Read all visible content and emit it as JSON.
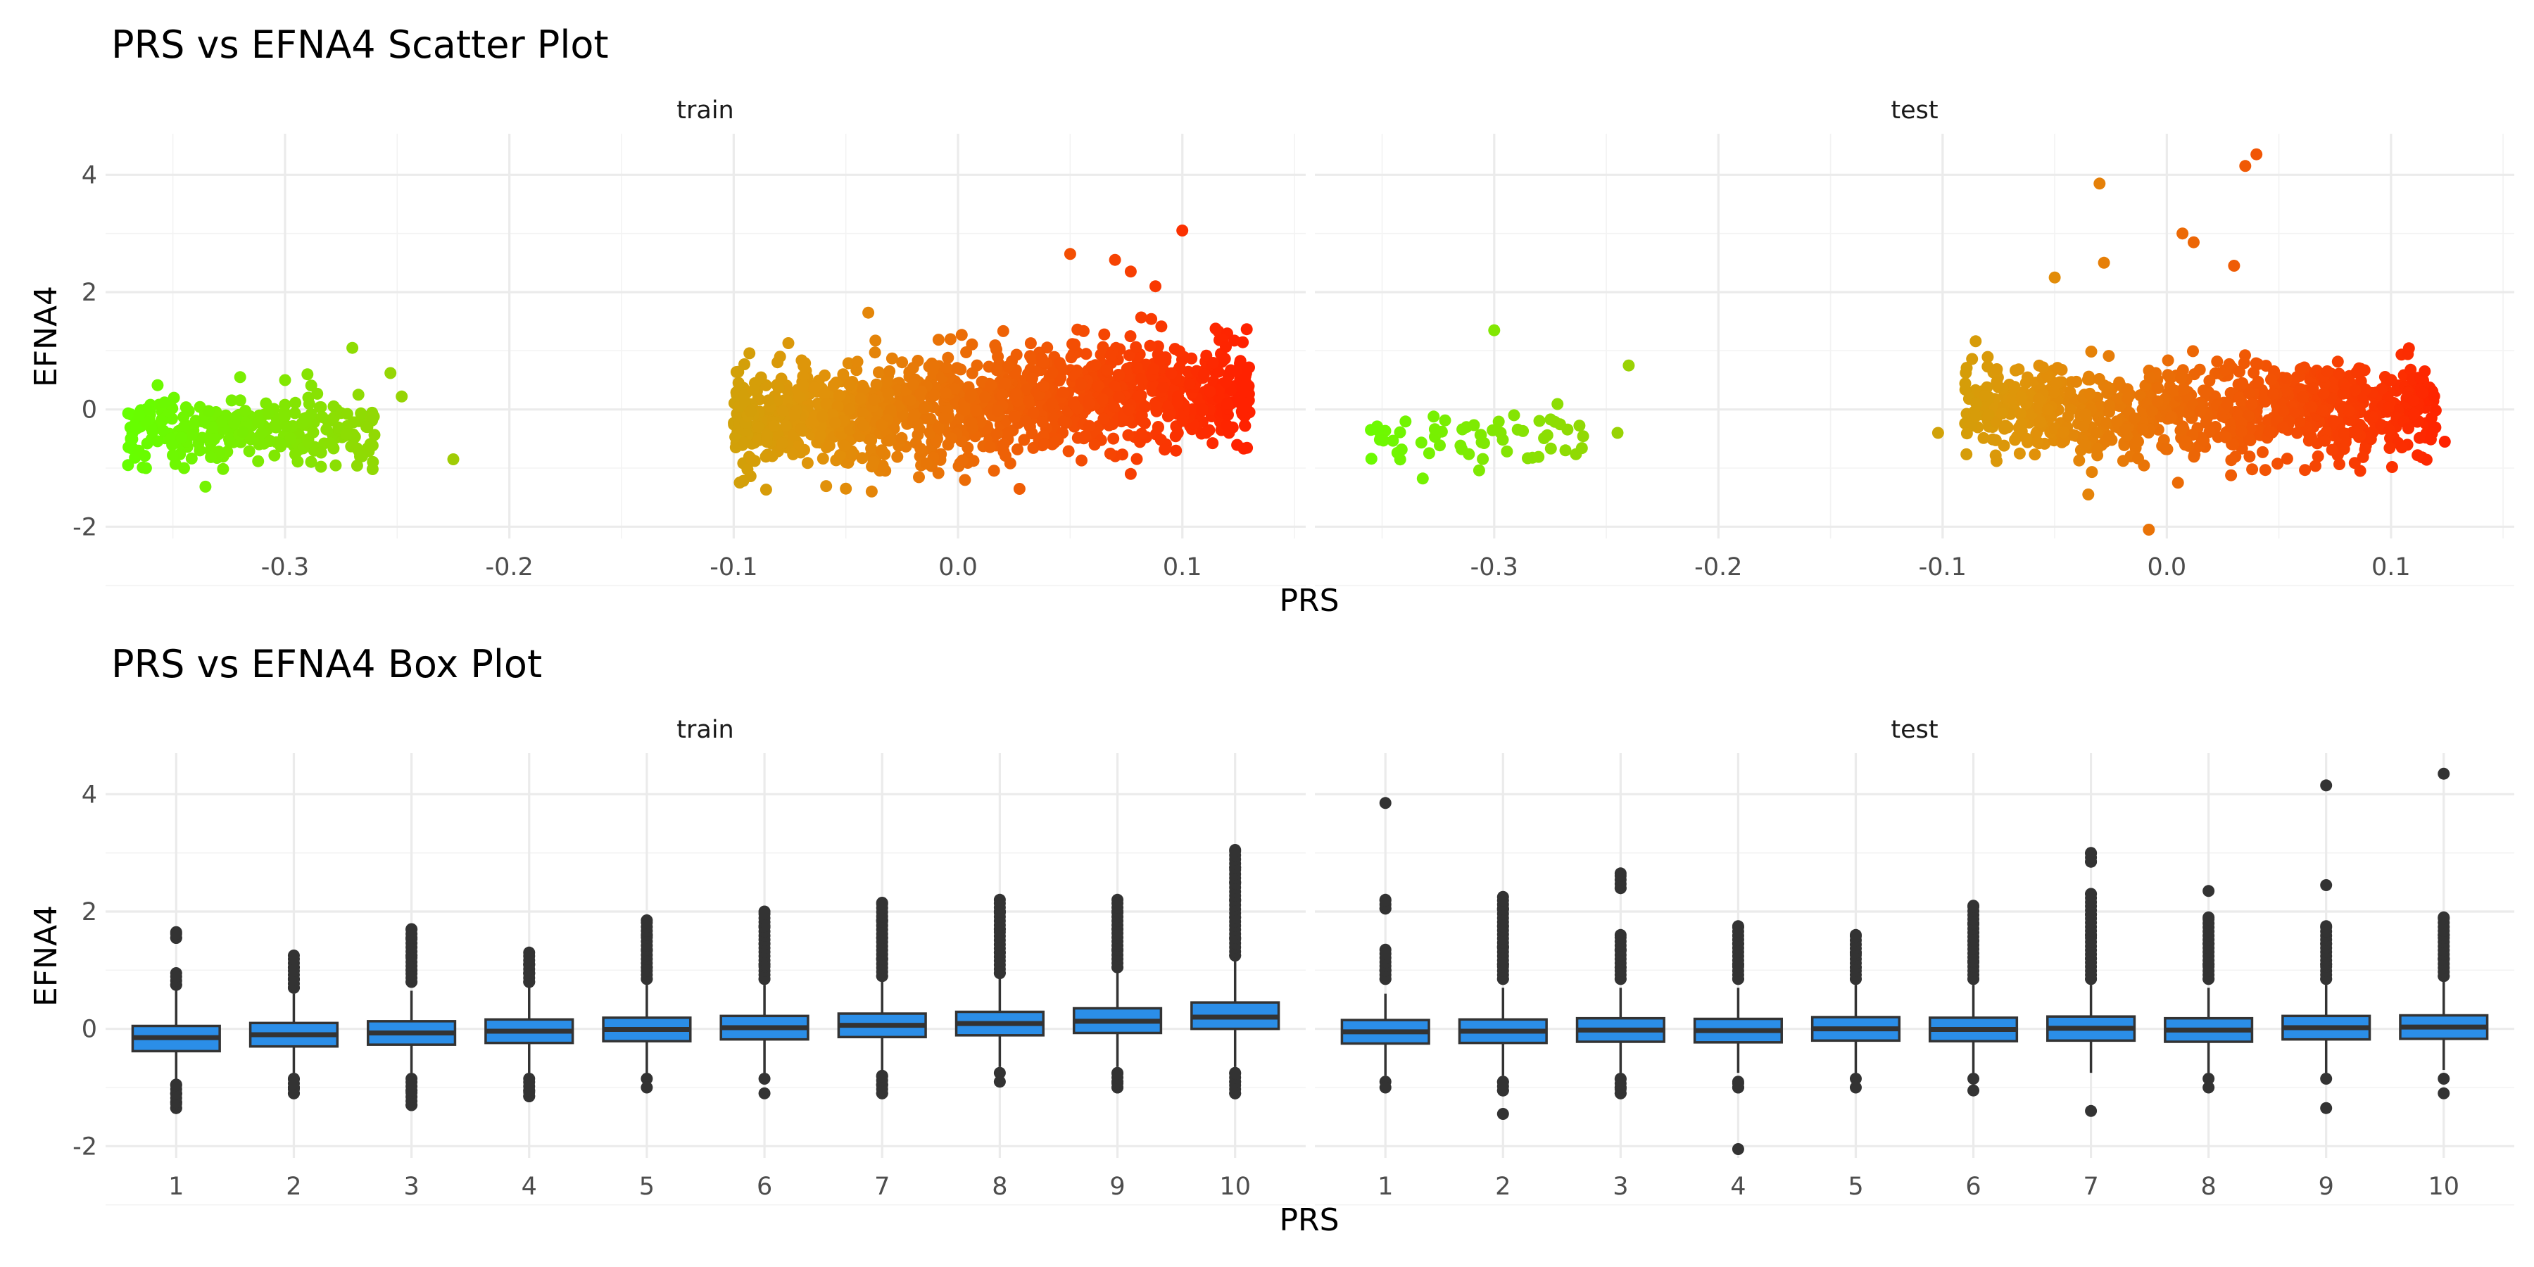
{
  "chart_data": [
    {
      "type": "scatter",
      "title": "PRS vs EFNA4 Scatter Plot",
      "xlabel": "PRS",
      "ylabel": "EFNA4",
      "xlim": [
        -0.38,
        0.155
      ],
      "ylim": [
        -2.2,
        4.7
      ],
      "xticks": [
        -0.3,
        -0.2,
        -0.1,
        0.0,
        0.1
      ],
      "xtick_labels": [
        "-0.3",
        "-0.2",
        "-0.1",
        "0.0",
        "0.1"
      ],
      "yticks": [
        -2,
        0,
        2,
        4
      ],
      "ytick_labels": [
        "-2",
        "0",
        "2",
        "4"
      ],
      "grid": true,
      "legend": "none",
      "color_scale": {
        "low": "#66ff00",
        "mid": "#e0940a",
        "high": "#ff2200"
      },
      "panels": [
        {
          "label": "train",
          "clusters": [
            {
              "x_range": [
                -0.37,
                -0.26
              ],
              "y_center": -0.35,
              "y_spread": 0.3
            },
            {
              "x_range": [
                -0.1,
                0.13
              ],
              "y_center": 0.05,
              "y_spread": 0.45
            }
          ],
          "points": [
            {
              "x": -0.37,
              "y": -0.95
            },
            {
              "x": -0.362,
              "y": -1.0
            },
            {
              "x": -0.365,
              "y": -0.1
            },
            {
              "x": -0.345,
              "y": -1.0
            },
            {
              "x": -0.32,
              "y": 0.55
            },
            {
              "x": -0.3,
              "y": 0.5
            },
            {
              "x": -0.29,
              "y": 0.6
            },
            {
              "x": -0.27,
              "y": 1.05
            },
            {
              "x": -0.253,
              "y": 0.62
            },
            {
              "x": -0.248,
              "y": 0.22
            },
            {
              "x": -0.225,
              "y": -0.85
            },
            {
              "x": -0.092,
              "y": -0.85
            },
            {
              "x": -0.04,
              "y": 1.65
            },
            {
              "x": 0.05,
              "y": 2.65
            },
            {
              "x": 0.07,
              "y": 2.55
            },
            {
              "x": 0.077,
              "y": 2.35
            },
            {
              "x": 0.088,
              "y": 2.1
            },
            {
              "x": 0.1,
              "y": 3.05
            },
            {
              "x": 0.077,
              "y": -1.1
            },
            {
              "x": -0.05,
              "y": -1.35
            },
            {
              "x": 0.126,
              "y": 0.78
            },
            {
              "x": 0.124,
              "y": 0.65
            },
            {
              "x": 0.098,
              "y": -0.4
            },
            {
              "x": 0.12,
              "y": 0.1
            }
          ]
        },
        {
          "label": "test",
          "clusters": [
            {
              "x_range": [
                -0.36,
                -0.26
              ],
              "y_center": -0.4,
              "y_spread": 0.28
            },
            {
              "x_range": [
                -0.09,
                0.12
              ],
              "y_center": 0.0,
              "y_spread": 0.38
            }
          ],
          "points": [
            {
              "x": -0.3,
              "y": 1.35
            },
            {
              "x": -0.24,
              "y": 0.75
            },
            {
              "x": -0.245,
              "y": -0.4
            },
            {
              "x": -0.355,
              "y": -0.35
            },
            {
              "x": -0.102,
              "y": -0.4
            },
            {
              "x": 0.035,
              "y": 4.15
            },
            {
              "x": 0.04,
              "y": 4.35
            },
            {
              "x": -0.03,
              "y": 3.85
            },
            {
              "x": 0.007,
              "y": 3.0
            },
            {
              "x": 0.012,
              "y": 2.85
            },
            {
              "x": -0.008,
              "y": -2.05
            },
            {
              "x": -0.035,
              "y": -1.45
            },
            {
              "x": 0.124,
              "y": -0.55
            },
            {
              "x": 0.11,
              "y": 0.15
            },
            {
              "x": -0.028,
              "y": 2.5
            },
            {
              "x": -0.05,
              "y": 2.25
            },
            {
              "x": 0.03,
              "y": 2.45
            },
            {
              "x": 0.005,
              "y": -1.25
            },
            {
              "x": 0.1,
              "y": 0.5
            },
            {
              "x": -0.085,
              "y": 0.1
            }
          ]
        }
      ]
    },
    {
      "type": "box",
      "title": "PRS vs EFNA4 Box Plot",
      "xlabel": "PRS",
      "ylabel": "EFNA4",
      "categories": [
        "1",
        "2",
        "3",
        "4",
        "5",
        "6",
        "7",
        "8",
        "9",
        "10"
      ],
      "ylim": [
        -2.2,
        4.7
      ],
      "yticks": [
        -2,
        0,
        2,
        4
      ],
      "ytick_labels": [
        "-2",
        "0",
        "2",
        "4"
      ],
      "fill": "#2b8ee8",
      "grid": true,
      "panels": [
        {
          "label": "train",
          "boxes": [
            {
              "q1": -0.38,
              "median": -0.15,
              "q3": 0.05,
              "wl": -0.85,
              "wh": 0.65,
              "out_lo": [
                -0.95,
                -1.1,
                -1.25,
                -1.35
              ],
              "out_hi": [
                0.75,
                0.95,
                1.55,
                1.65
              ]
            },
            {
              "q1": -0.3,
              "median": -0.1,
              "q3": 0.1,
              "wl": -0.75,
              "wh": 0.6,
              "out_lo": [
                -0.85,
                -1.0,
                -1.1
              ],
              "out_hi": [
                0.7,
                0.85,
                1.05,
                1.25
              ]
            },
            {
              "q1": -0.27,
              "median": -0.07,
              "q3": 0.13,
              "wl": -0.75,
              "wh": 0.65,
              "out_lo": [
                -0.85,
                -1.05,
                -1.3
              ],
              "out_hi": [
                0.8,
                1.0,
                1.25,
                1.55,
                1.7
              ]
            },
            {
              "q1": -0.24,
              "median": -0.04,
              "q3": 0.16,
              "wl": -0.75,
              "wh": 0.7,
              "out_lo": [
                -0.85,
                -1.05,
                -1.15
              ],
              "out_hi": [
                0.8,
                0.95,
                1.1,
                1.3
              ]
            },
            {
              "q1": -0.21,
              "median": -0.01,
              "q3": 0.19,
              "wl": -0.8,
              "wh": 0.75,
              "out_lo": [
                -0.85,
                -1.0
              ],
              "out_hi": [
                0.85,
                1.05,
                1.35,
                1.6,
                1.85
              ]
            },
            {
              "q1": -0.18,
              "median": 0.02,
              "q3": 0.22,
              "wl": -0.75,
              "wh": 0.75,
              "out_lo": [
                -0.85,
                -1.1
              ],
              "out_hi": [
                0.85,
                1.1,
                1.45,
                1.75,
                2.0
              ]
            },
            {
              "q1": -0.14,
              "median": 0.06,
              "q3": 0.26,
              "wl": -0.7,
              "wh": 0.8,
              "out_lo": [
                -0.8,
                -0.95,
                -1.1
              ],
              "out_hi": [
                0.9,
                1.2,
                1.55,
                1.85,
                2.15
              ]
            },
            {
              "q1": -0.11,
              "median": 0.09,
              "q3": 0.29,
              "wl": -0.65,
              "wh": 0.85,
              "out_lo": [
                -0.75,
                -0.9
              ],
              "out_hi": [
                0.95,
                1.3,
                1.7,
                2.0,
                2.2
              ]
            },
            {
              "q1": -0.07,
              "median": 0.13,
              "q3": 0.35,
              "wl": -0.65,
              "wh": 0.95,
              "out_lo": [
                -0.75,
                -0.9,
                -1.0
              ],
              "out_hi": [
                1.05,
                1.35,
                1.7,
                2.0,
                2.2
              ]
            },
            {
              "q1": 0.0,
              "median": 0.2,
              "q3": 0.45,
              "wl": -0.65,
              "wh": 1.15,
              "out_lo": [
                -0.75,
                -0.9,
                -1.1
              ],
              "out_hi": [
                1.25,
                1.55,
                1.9,
                2.2,
                2.5,
                2.75,
                3.05
              ]
            }
          ]
        },
        {
          "label": "test",
          "boxes": [
            {
              "q1": -0.25,
              "median": -0.05,
              "q3": 0.15,
              "wl": -0.8,
              "wh": 0.6,
              "out_lo": [
                -0.9,
                -1.0
              ],
              "out_hi": [
                0.85,
                1.0,
                1.35,
                2.05,
                2.2,
                3.85
              ]
            },
            {
              "q1": -0.24,
              "median": -0.04,
              "q3": 0.16,
              "wl": -0.8,
              "wh": 0.7,
              "out_lo": [
                -0.9,
                -1.05,
                -1.45
              ],
              "out_hi": [
                0.85,
                1.1,
                1.4,
                1.75,
                2.05,
                2.25
              ]
            },
            {
              "q1": -0.22,
              "median": -0.02,
              "q3": 0.18,
              "wl": -0.75,
              "wh": 0.7,
              "out_lo": [
                -0.85,
                -1.0,
                -1.1
              ],
              "out_hi": [
                0.85,
                1.05,
                1.35,
                1.6,
                2.4,
                2.65
              ]
            },
            {
              "q1": -0.23,
              "median": -0.03,
              "q3": 0.17,
              "wl": -0.75,
              "wh": 0.7,
              "out_lo": [
                -0.9,
                -1.0,
                -2.05
              ],
              "out_hi": [
                0.85,
                1.1,
                1.45,
                1.75
              ]
            },
            {
              "q1": -0.2,
              "median": 0.0,
              "q3": 0.2,
              "wl": -0.75,
              "wh": 0.75,
              "out_lo": [
                -0.85,
                -1.0
              ],
              "out_hi": [
                0.85,
                1.05,
                1.3,
                1.6
              ]
            },
            {
              "q1": -0.21,
              "median": -0.01,
              "q3": 0.19,
              "wl": -0.75,
              "wh": 0.75,
              "out_lo": [
                -0.85,
                -1.05
              ],
              "out_hi": [
                0.85,
                1.15,
                1.5,
                1.8,
                2.1
              ]
            },
            {
              "q1": -0.2,
              "median": 0.01,
              "q3": 0.21,
              "wl": -0.75,
              "wh": 0.75,
              "out_lo": [
                -1.4
              ],
              "out_hi": [
                0.85,
                1.2,
                1.6,
                1.95,
                2.3,
                2.85,
                3.0
              ]
            },
            {
              "q1": -0.22,
              "median": -0.02,
              "q3": 0.18,
              "wl": -0.75,
              "wh": 0.7,
              "out_lo": [
                -0.85,
                -1.0
              ],
              "out_hi": [
                0.85,
                1.1,
                1.45,
                1.9,
                2.35
              ]
            },
            {
              "q1": -0.18,
              "median": 0.02,
              "q3": 0.22,
              "wl": -0.75,
              "wh": 0.75,
              "out_lo": [
                -0.85,
                -1.35
              ],
              "out_hi": [
                0.85,
                1.1,
                1.45,
                1.75,
                2.45,
                4.15
              ]
            },
            {
              "q1": -0.17,
              "median": 0.03,
              "q3": 0.23,
              "wl": -0.7,
              "wh": 0.8,
              "out_lo": [
                -0.85,
                -1.1
              ],
              "out_hi": [
                0.9,
                1.2,
                1.6,
                1.9,
                4.35
              ]
            }
          ]
        }
      ]
    }
  ]
}
